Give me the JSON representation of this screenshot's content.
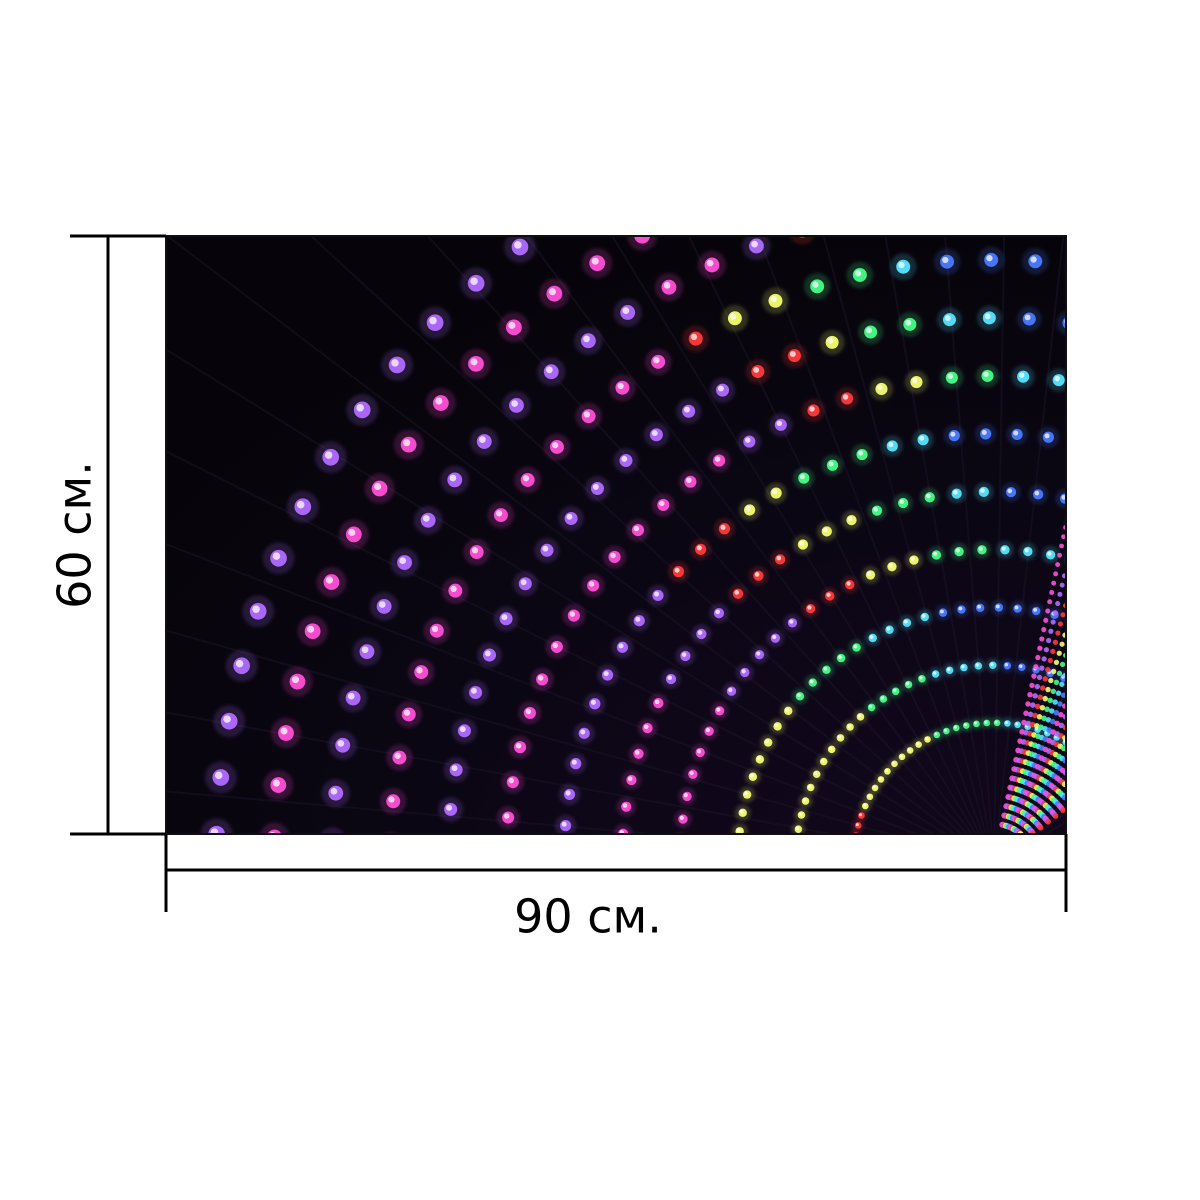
{
  "dimensions": {
    "width_label": "90 см.",
    "height_label": "60 см."
  },
  "artwork": {
    "background": "#0a0612",
    "palette": {
      "magenta": "#ff4fd8",
      "violet": "#b16bff",
      "red": "#ff3a3a",
      "yellow": "#f6ff6a",
      "green": "#43ff88",
      "cyan": "#53e6ff",
      "blue": "#4a7bff"
    }
  }
}
